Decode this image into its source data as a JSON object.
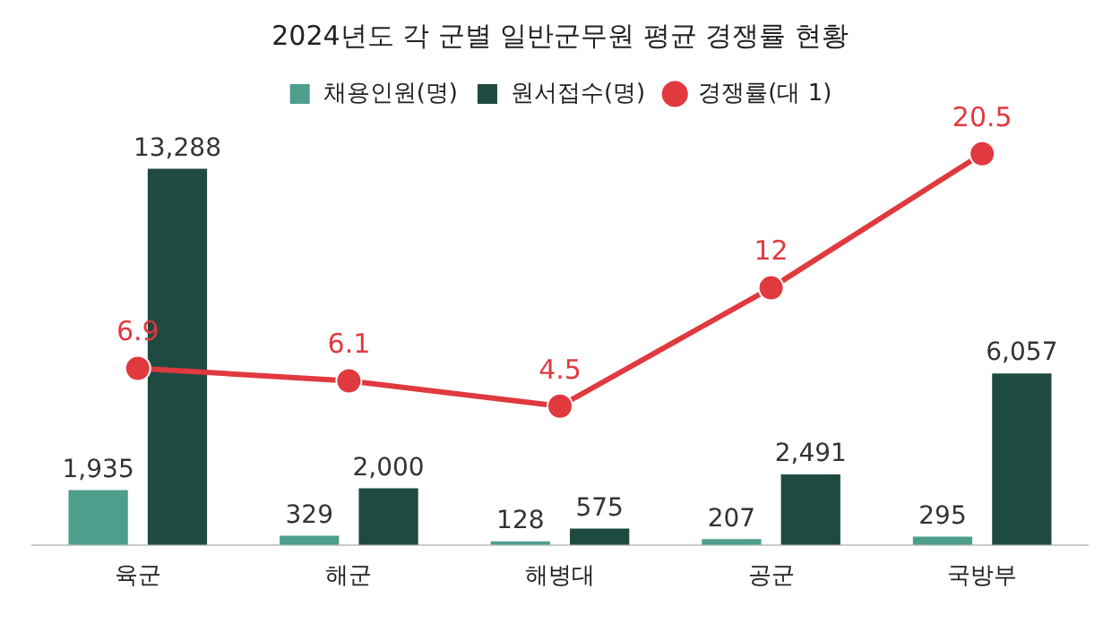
{
  "chart_data": {
    "type": "bar",
    "title": "2024년도 각 군별 일반군무원 평균 경쟁률 현황",
    "categories": [
      "육군",
      "해군",
      "해병대",
      "공군",
      "국방부"
    ],
    "series": [
      {
        "name": "채용인원(명)",
        "color": "#4e9e8c",
        "values": [
          1935,
          329,
          128,
          207,
          295
        ],
        "value_labels": [
          "1,935",
          "329",
          "128",
          "207",
          "295"
        ]
      },
      {
        "name": "원서접수(명)",
        "color": "#1f4a41",
        "values": [
          13288,
          2000,
          575,
          2491,
          6057
        ],
        "value_labels": [
          "13,288",
          "2,000",
          "575",
          "2,491",
          "6,057"
        ]
      },
      {
        "name": "경쟁률(대 1)",
        "type": "line",
        "axis": "y2",
        "color": "#e0393e",
        "marker": "circle",
        "values": [
          6.9,
          6.1,
          4.5,
          12,
          20.5
        ],
        "value_labels": [
          "6.9",
          "6.1",
          "4.5",
          "12",
          "20.5"
        ]
      }
    ],
    "legend": "top",
    "grid": false
  }
}
